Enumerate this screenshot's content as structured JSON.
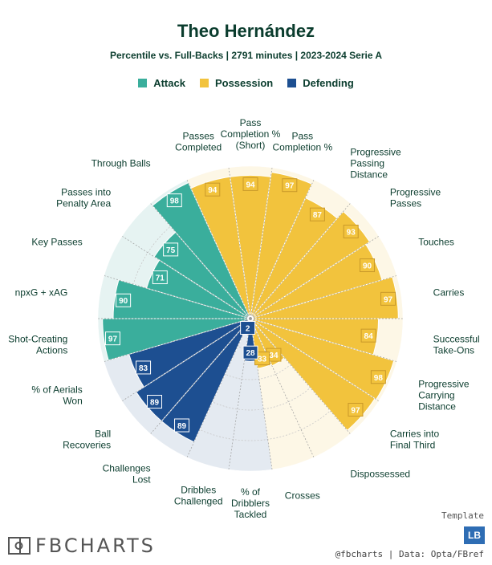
{
  "title": "Theo Hernández",
  "subtitle": "Percentile vs. Full-Backs | 2791 minutes | 2023-2024 Serie A",
  "legend": [
    {
      "label": "Attack",
      "color": "#3aae9c"
    },
    {
      "label": "Possession",
      "color": "#f2c33d"
    },
    {
      "label": "Defending",
      "color": "#1d4f91"
    }
  ],
  "chart_data": {
    "type": "pizza",
    "title": "Theo Hernández",
    "subtitle": "Percentile vs. Full-Backs | 2791 minutes | 2023-2024 Serie A",
    "range": [
      0,
      100
    ],
    "groups": {
      "Attack": {
        "color": "#3aae9c",
        "bg": "#e6f3f2"
      },
      "Possession": {
        "color": "#f2c33d",
        "bg": "#fdf7e6"
      },
      "Defending": {
        "color": "#1d4f91",
        "bg": "#e4eaf1"
      }
    },
    "metrics": [
      {
        "label": "Pass Completion % (Short)",
        "value": 94,
        "group": "Possession"
      },
      {
        "label": "Pass Completion %",
        "value": 97,
        "group": "Possession"
      },
      {
        "label": "Progressive Passing Distance",
        "value": 87,
        "group": "Possession"
      },
      {
        "label": "Progressive Passes",
        "value": 93,
        "group": "Possession"
      },
      {
        "label": "Touches",
        "value": 90,
        "group": "Possession"
      },
      {
        "label": "Carries",
        "value": 97,
        "group": "Possession"
      },
      {
        "label": "Successful Take-Ons",
        "value": 84,
        "group": "Possession"
      },
      {
        "label": "Progressive Carrying Distance",
        "value": 98,
        "group": "Possession"
      },
      {
        "label": "Carries into Final Third",
        "value": 97,
        "group": "Possession"
      },
      {
        "label": "Dispossessed",
        "value": 34,
        "group": "Possession"
      },
      {
        "label": "Crosses",
        "value": 33,
        "group": "Possession"
      },
      {
        "label": "% of Dribblers Tackled",
        "value": 28,
        "group": "Defending"
      },
      {
        "label": "Dribbles Challenged",
        "value": 2,
        "group": "Defending"
      },
      {
        "label": "Challenges Lost",
        "value": 89,
        "group": "Defending"
      },
      {
        "label": "Ball Recoveries",
        "value": 89,
        "group": "Defending"
      },
      {
        "label": "% of Aerials Won",
        "value": 83,
        "group": "Defending"
      },
      {
        "label": "Shot-Creating Actions",
        "value": 97,
        "group": "Attack"
      },
      {
        "label": "npxG + xAG",
        "value": 90,
        "group": "Attack"
      },
      {
        "label": "Key Passes",
        "value": 71,
        "group": "Attack"
      },
      {
        "label": "Passes into Penalty Area",
        "value": 75,
        "group": "Attack"
      },
      {
        "label": "Through Balls",
        "value": 98,
        "group": "Attack"
      },
      {
        "label": "Passes Completed",
        "value": 94,
        "group": "Possession"
      }
    ]
  },
  "footer": {
    "brand": "FBCHARTS",
    "template_label": "Template",
    "badge": "LB",
    "credit": "@fbcharts | Data: Opta/FBref"
  }
}
